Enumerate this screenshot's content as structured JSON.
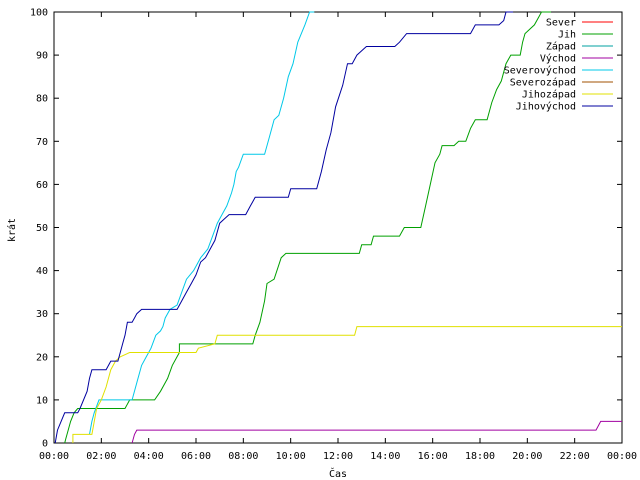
{
  "chart_data": {
    "type": "line",
    "xlabel": "Čas",
    "ylabel": "krát",
    "xlim": [
      0,
      24
    ],
    "ylim": [
      0,
      100
    ],
    "x_ticks": [
      {
        "value": 0,
        "label": "00:00"
      },
      {
        "value": 2,
        "label": "02:00"
      },
      {
        "value": 4,
        "label": "04:00"
      },
      {
        "value": 6,
        "label": "06:00"
      },
      {
        "value": 8,
        "label": "08:00"
      },
      {
        "value": 10,
        "label": "10:00"
      },
      {
        "value": 12,
        "label": "12:00"
      },
      {
        "value": 14,
        "label": "14:00"
      },
      {
        "value": 16,
        "label": "16:00"
      },
      {
        "value": 18,
        "label": "18:00"
      },
      {
        "value": 20,
        "label": "20:00"
      },
      {
        "value": 22,
        "label": "22:00"
      },
      {
        "value": 24,
        "label": "00:00"
      }
    ],
    "y_ticks": [
      0,
      10,
      20,
      30,
      40,
      50,
      60,
      70,
      80,
      90,
      100
    ],
    "grid": false,
    "legend_position": "top-right",
    "series": [
      {
        "name": "Sever",
        "color": "#ff0000",
        "points": []
      },
      {
        "name": "Jih",
        "color": "#00a000",
        "points": [
          [
            0.45,
            0
          ],
          [
            0.5,
            1
          ],
          [
            0.6,
            3
          ],
          [
            0.7,
            5
          ],
          [
            0.85,
            7
          ],
          [
            1.0,
            8
          ],
          [
            2.0,
            8
          ],
          [
            3.0,
            8
          ],
          [
            3.2,
            10
          ],
          [
            4.25,
            10
          ],
          [
            4.5,
            12
          ],
          [
            4.8,
            15
          ],
          [
            5.0,
            18
          ],
          [
            5.3,
            21
          ],
          [
            5.3,
            23
          ],
          [
            8.4,
            23
          ],
          [
            8.5,
            25
          ],
          [
            8.7,
            28
          ],
          [
            8.9,
            33
          ],
          [
            9.0,
            37
          ],
          [
            9.3,
            38
          ],
          [
            9.6,
            43
          ],
          [
            9.8,
            44
          ],
          [
            12.9,
            44
          ],
          [
            13.0,
            46
          ],
          [
            13.4,
            46
          ],
          [
            13.5,
            48
          ],
          [
            14.6,
            48
          ],
          [
            14.8,
            50
          ],
          [
            15.5,
            50
          ],
          [
            15.7,
            55
          ],
          [
            15.9,
            60
          ],
          [
            16.1,
            65
          ],
          [
            16.3,
            67
          ],
          [
            16.4,
            69
          ],
          [
            16.9,
            69
          ],
          [
            17.1,
            70
          ],
          [
            17.4,
            70
          ],
          [
            17.6,
            73
          ],
          [
            17.8,
            75
          ],
          [
            18.3,
            75
          ],
          [
            18.5,
            79
          ],
          [
            18.7,
            82
          ],
          [
            18.9,
            84
          ],
          [
            19.1,
            88
          ],
          [
            19.3,
            90
          ],
          [
            19.7,
            90
          ],
          [
            19.8,
            93
          ],
          [
            19.9,
            95
          ],
          [
            20.1,
            96
          ],
          [
            20.3,
            97
          ],
          [
            20.5,
            99
          ],
          [
            20.6,
            100
          ],
          [
            21.0,
            100
          ]
        ]
      },
      {
        "name": "Západ",
        "color": "#00a0a0",
        "points": []
      },
      {
        "name": "Východ",
        "color": "#a000a0",
        "points": [
          [
            3.3,
            0
          ],
          [
            3.4,
            2
          ],
          [
            3.5,
            3
          ],
          [
            22.9,
            3
          ],
          [
            23.1,
            5
          ],
          [
            24,
            5
          ]
        ]
      },
      {
        "name": "Severovýchod",
        "color": "#00c8e8",
        "points": [
          [
            1.5,
            2
          ],
          [
            1.6,
            5
          ],
          [
            1.7,
            7
          ],
          [
            1.9,
            10
          ],
          [
            3.3,
            10
          ],
          [
            3.5,
            14
          ],
          [
            3.7,
            18
          ],
          [
            3.9,
            20
          ],
          [
            4.1,
            22
          ],
          [
            4.3,
            25
          ],
          [
            4.5,
            26
          ],
          [
            4.6,
            27
          ],
          [
            4.7,
            29
          ],
          [
            4.9,
            31
          ],
          [
            5.2,
            32
          ],
          [
            5.4,
            35
          ],
          [
            5.6,
            38
          ],
          [
            5.9,
            40
          ],
          [
            6.2,
            43
          ],
          [
            6.5,
            45
          ],
          [
            6.7,
            48
          ],
          [
            6.9,
            51
          ],
          [
            7.1,
            53
          ],
          [
            7.3,
            55
          ],
          [
            7.5,
            58
          ],
          [
            7.6,
            60
          ],
          [
            7.7,
            63
          ],
          [
            7.8,
            64
          ],
          [
            8.0,
            67
          ],
          [
            8.9,
            67
          ],
          [
            9.1,
            71
          ],
          [
            9.3,
            75
          ],
          [
            9.5,
            76
          ],
          [
            9.7,
            80
          ],
          [
            9.9,
            85
          ],
          [
            10.1,
            88
          ],
          [
            10.3,
            93
          ],
          [
            10.6,
            97
          ],
          [
            10.8,
            100
          ],
          [
            11.0,
            100
          ]
        ]
      },
      {
        "name": "Severozápad",
        "color": "#a05000",
        "points": []
      },
      {
        "name": "Jihozápad",
        "color": "#e0e000",
        "points": [
          [
            0.8,
            0
          ],
          [
            0.8,
            2
          ],
          [
            1.6,
            2
          ],
          [
            1.8,
            8
          ],
          [
            2.0,
            10
          ],
          [
            2.2,
            13
          ],
          [
            2.4,
            17
          ],
          [
            2.6,
            19
          ],
          [
            2.8,
            20
          ],
          [
            3.2,
            21
          ],
          [
            6.0,
            21
          ],
          [
            6.1,
            22
          ],
          [
            6.8,
            23
          ],
          [
            6.9,
            25
          ],
          [
            12.7,
            25
          ],
          [
            12.8,
            27
          ],
          [
            24,
            27
          ]
        ]
      },
      {
        "name": "Jihovýchod",
        "color": "#0000a0",
        "points": [
          [
            0.05,
            0
          ],
          [
            0.15,
            3
          ],
          [
            0.3,
            5
          ],
          [
            0.45,
            7
          ],
          [
            1.0,
            7
          ],
          [
            1.1,
            8
          ],
          [
            1.4,
            12
          ],
          [
            1.5,
            15
          ],
          [
            1.6,
            17
          ],
          [
            2.2,
            17
          ],
          [
            2.4,
            19
          ],
          [
            2.7,
            19
          ],
          [
            2.9,
            23
          ],
          [
            3.0,
            25
          ],
          [
            3.1,
            28
          ],
          [
            3.3,
            28
          ],
          [
            3.4,
            29
          ],
          [
            3.5,
            30
          ],
          [
            3.7,
            31
          ],
          [
            5.2,
            31
          ],
          [
            5.4,
            33
          ],
          [
            5.6,
            35
          ],
          [
            5.8,
            37
          ],
          [
            6.0,
            39
          ],
          [
            6.2,
            42
          ],
          [
            6.4,
            43
          ],
          [
            6.6,
            45
          ],
          [
            6.8,
            47
          ],
          [
            7.0,
            51
          ],
          [
            7.2,
            52
          ],
          [
            7.4,
            53
          ],
          [
            8.1,
            53
          ],
          [
            8.3,
            55
          ],
          [
            8.4,
            56
          ],
          [
            8.5,
            57
          ],
          [
            9.9,
            57
          ],
          [
            10.0,
            59
          ],
          [
            11.1,
            59
          ],
          [
            11.3,
            63
          ],
          [
            11.5,
            68
          ],
          [
            11.7,
            72
          ],
          [
            11.9,
            78
          ],
          [
            12.2,
            83
          ],
          [
            12.4,
            88
          ],
          [
            12.6,
            88
          ],
          [
            12.8,
            90
          ],
          [
            13.0,
            91
          ],
          [
            13.2,
            92
          ],
          [
            14.4,
            92
          ],
          [
            14.6,
            93
          ],
          [
            14.9,
            95
          ],
          [
            17.6,
            95
          ],
          [
            17.8,
            97
          ],
          [
            18.8,
            97
          ],
          [
            19.0,
            98
          ],
          [
            19.1,
            100
          ],
          [
            19.4,
            100
          ]
        ]
      }
    ]
  }
}
